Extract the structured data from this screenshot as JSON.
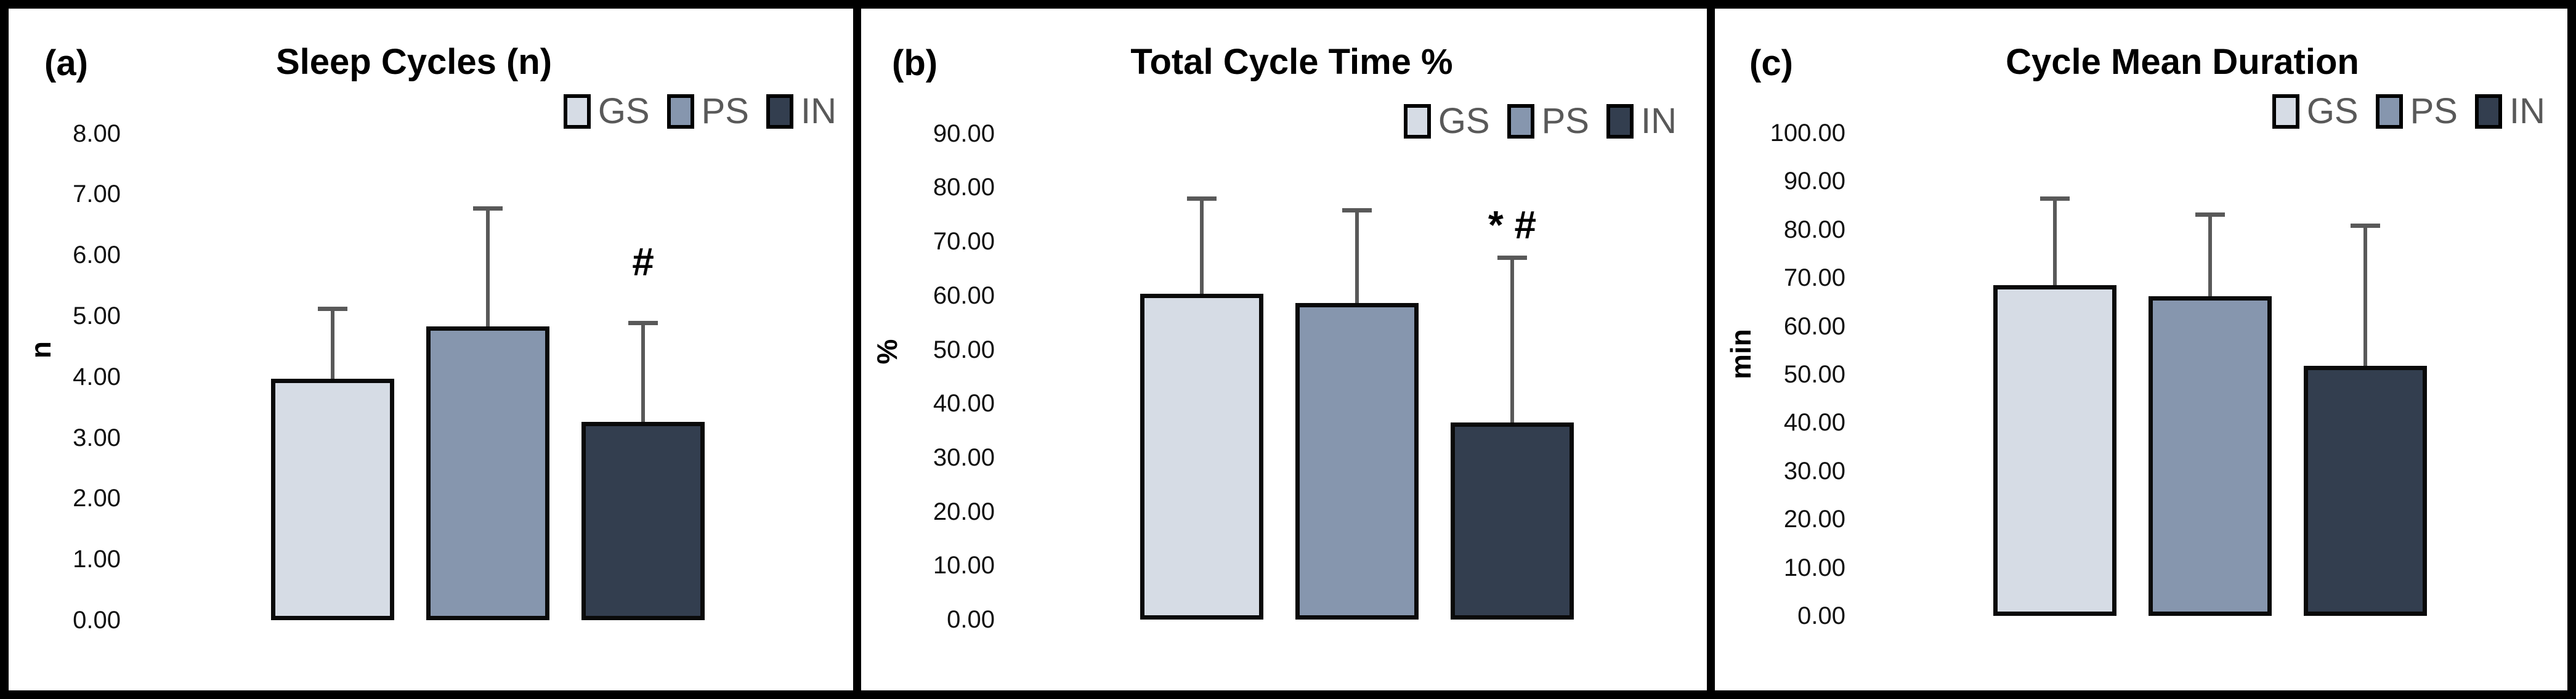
{
  "figure_title": "",
  "style": {
    "series_colors": {
      "GS": "#d6dce5",
      "PS": "#8696ae",
      "IN": "#333e4f"
    },
    "error_bar_color": "#595959",
    "legend_text_color": "#595959",
    "bar_border_color": "#000000",
    "frame_color": "#000000"
  },
  "chart_data": [
    {
      "id": "a",
      "type": "bar",
      "panel_label": "(a)",
      "title": "Sleep Cycles (n)",
      "categories": [
        "GS",
        "PS",
        "IN"
      ],
      "values": [
        3.97,
        4.83,
        3.26
      ],
      "error_plus": [
        1.15,
        1.94,
        1.63
      ],
      "error_top": [
        5.12,
        6.77,
        4.89
      ],
      "annotations": [
        {
          "category": "IN",
          "text": "#"
        }
      ],
      "xlabel": "",
      "ylabel": "n",
      "ylim": [
        0,
        8
      ],
      "ytick_step": 1,
      "yticks": [
        "8.00",
        "7.00",
        "6.00",
        "5.00",
        "4.00",
        "3.00",
        "2.00",
        "1.00",
        "0.00"
      ],
      "legend_entries": [
        "GS",
        "PS",
        "IN"
      ],
      "legend_position": "top-right",
      "grid": false
    },
    {
      "id": "b",
      "type": "bar",
      "panel_label": "(b)",
      "title": "Total Cycle Time %",
      "categories": [
        "GS",
        "PS",
        "IN"
      ],
      "values": [
        60.3,
        58.6,
        36.5
      ],
      "error_plus": [
        17.7,
        17.2,
        30.5
      ],
      "error_top": [
        78.0,
        75.8,
        67.0
      ],
      "annotations": [
        {
          "category": "IN",
          "text": "* #"
        }
      ],
      "xlabel": "",
      "ylabel": "%",
      "ylim": [
        0,
        90
      ],
      "ytick_step": 10,
      "yticks": [
        "90.00",
        "80.00",
        "70.00",
        "60.00",
        "50.00",
        "40.00",
        "30.00",
        "20.00",
        "10.00",
        "0.00"
      ],
      "legend_entries": [
        "GS",
        "PS",
        "IN"
      ],
      "legend_position": "top-right",
      "grid": false
    },
    {
      "id": "c",
      "type": "bar",
      "panel_label": "(c)",
      "title": "Cycle Mean Duration",
      "categories": [
        "GS",
        "PS",
        "IN"
      ],
      "values": [
        68.5,
        66.2,
        51.8
      ],
      "error_plus": [
        18.0,
        16.9,
        29.1
      ],
      "error_top": [
        86.5,
        83.1,
        80.9
      ],
      "annotations": [],
      "xlabel": "",
      "ylabel": "min",
      "ylim": [
        0,
        100
      ],
      "ytick_step": 10,
      "yticks": [
        "100.00",
        "90.00",
        "80.00",
        "70.00",
        "60.00",
        "50.00",
        "40.00",
        "30.00",
        "20.00",
        "10.00",
        "0.00"
      ],
      "legend_entries": [
        "GS",
        "PS",
        "IN"
      ],
      "legend_position": "top-right",
      "grid": false
    }
  ]
}
